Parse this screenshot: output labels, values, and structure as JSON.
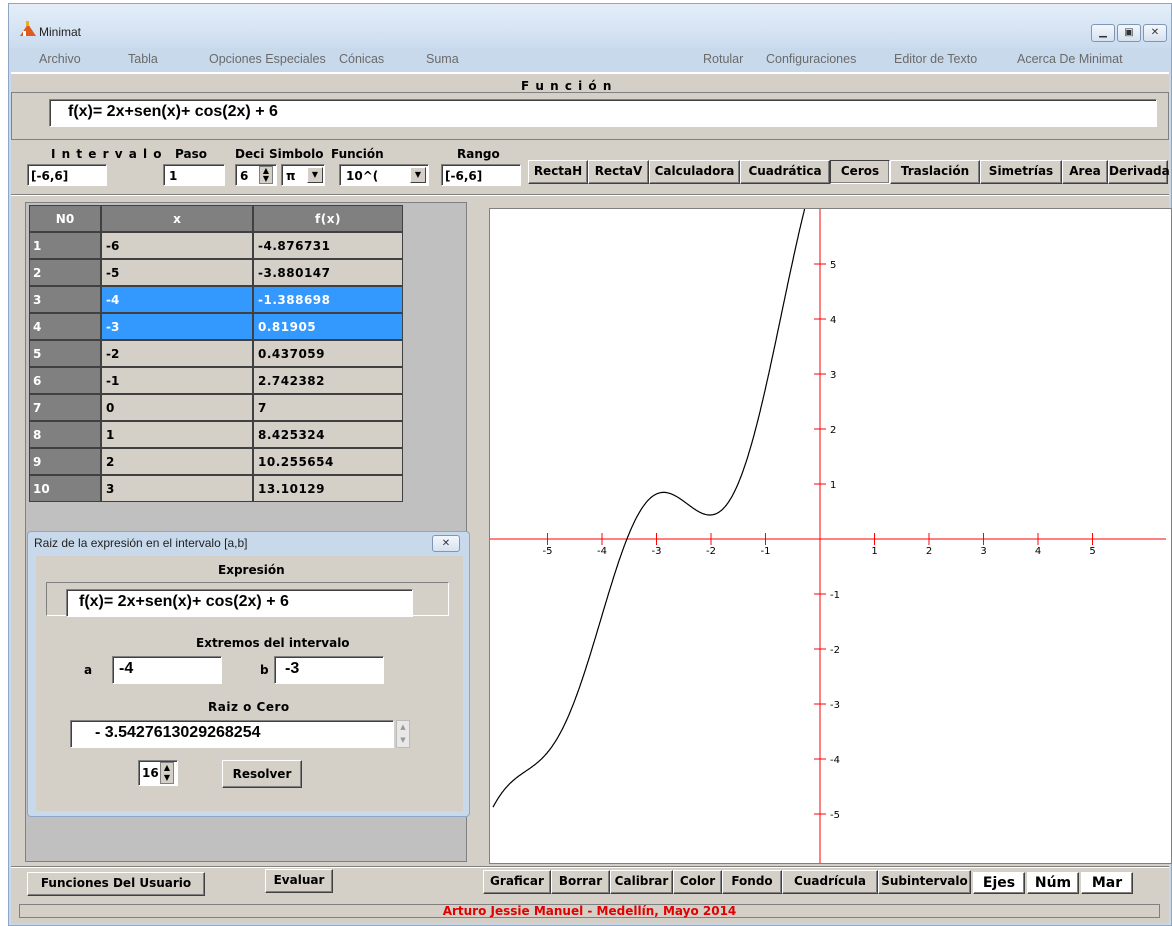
{
  "window": {
    "title": "Minimat"
  },
  "menu": [
    "Archivo",
    "Tabla",
    "Opciones Especiales",
    "Cónicas",
    "Suma",
    "Rotular",
    "Configuraciones",
    "Editor de Texto",
    "Acerca De Minimat"
  ],
  "function_header": "F u n c i ó n",
  "function_text": "f(x)= 2x+sen(x)+ cos(2x) + 6",
  "controls": {
    "intervalo_label": "I n t e r v a l o",
    "intervalo_value": "[-6,6]",
    "paso_label": "Paso",
    "paso_value": "1",
    "deci_label": "Deci",
    "deci_value": "6",
    "simbolo_label": "Simbolo",
    "simbolo_value": "π",
    "funcion_label": "Función",
    "funcion_value": "10^(",
    "rango_label": "Rango",
    "rango_value": "[-6,6]"
  },
  "tool_buttons": [
    "RectaH",
    "RectaV",
    "Calculadora",
    "Cuadrática",
    "Ceros",
    "Traslación",
    "Simetrías",
    "Area",
    "Derivada"
  ],
  "table": {
    "headers": [
      "N0",
      "x",
      "f(x)"
    ],
    "rows": [
      [
        "1",
        "-6",
        "-4.876731"
      ],
      [
        "2",
        "-5",
        "-3.880147"
      ],
      [
        "3",
        "-4",
        "-1.388698"
      ],
      [
        "4",
        "-3",
        " 0.81905"
      ],
      [
        "5",
        "-2",
        " 0.437059"
      ],
      [
        "6",
        "-1",
        " 2.742382"
      ],
      [
        "7",
        "0",
        " 7"
      ],
      [
        "8",
        "1",
        " 8.425324"
      ],
      [
        "9",
        "2",
        " 10.255654"
      ],
      [
        "10",
        "3",
        " 13.10129"
      ]
    ]
  },
  "dialog": {
    "title": "Raiz de la expresión en el intervalo [a,b]",
    "expr_label": "Expresión",
    "expr_value": "f(x)= 2x+sen(x)+ cos(2x) + 6",
    "extremes_label": "Extremos del intervalo",
    "a_label": "a",
    "a_value": "-4",
    "b_label": "b",
    "b_value": "-3",
    "root_label": "Raiz o Cero",
    "root_value": "- 3.5427613029268254",
    "digits_value": "16",
    "solve_label": "Resolver"
  },
  "bottom": {
    "user_functions": "Funciones Del Usuario",
    "evaluate": "Evaluar",
    "graph_buttons": [
      "Graficar",
      "Borrar",
      "Calibrar",
      "Color",
      "Fondo",
      "Cuadrícula",
      "Subintervalo",
      "Ejes",
      "Núm",
      "Mar"
    ]
  },
  "status_text": "Arturo Jessie Manuel - Medellín, Mayo 2014",
  "chart_data": {
    "type": "line",
    "function": "f(x)= 2x+sen(x)+ cos(2x) + 6",
    "x_ticks": [
      -5,
      -4,
      -3,
      -2,
      -1,
      1,
      2,
      3,
      4,
      5
    ],
    "y_ticks": [
      -5,
      -4,
      -3,
      -2,
      -1,
      1,
      2,
      3,
      4,
      5
    ],
    "xlim": [
      -6,
      6
    ],
    "ylim": [
      -6,
      6
    ],
    "axis_color": "#ff0000",
    "curve_color": "#000000"
  }
}
